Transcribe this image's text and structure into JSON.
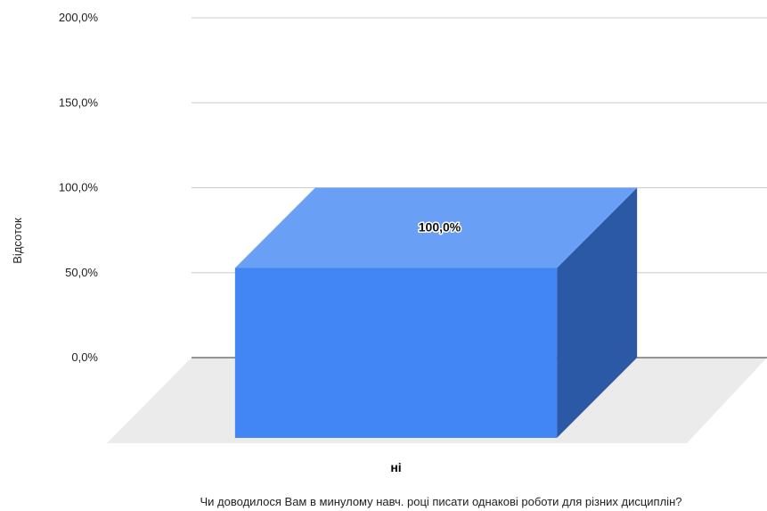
{
  "chart_data": {
    "type": "bar",
    "three_d": true,
    "categories": [
      "ні"
    ],
    "values": [
      100
    ],
    "data_labels": [
      "100,0%"
    ],
    "ylabel": "Відсоток",
    "xlabel": "Чи доводилося Вам в минулому навч. році  писати однакові роботи для різних дисциплін?",
    "ylim": [
      0,
      200
    ],
    "yticks": [
      0,
      50,
      100,
      150,
      200
    ],
    "ytick_labels": [
      "0,0%",
      "50,0%",
      "100,0%",
      "150,0%",
      "200,0%"
    ],
    "grid": true,
    "legend": "none",
    "colors": {
      "bar_front": "#4285f4",
      "bar_top": "#6a9ff6",
      "bar_side": "#2c59a6",
      "gridline": "#cccccc",
      "zero_line": "#333333",
      "floor": "#ebebeb"
    }
  }
}
